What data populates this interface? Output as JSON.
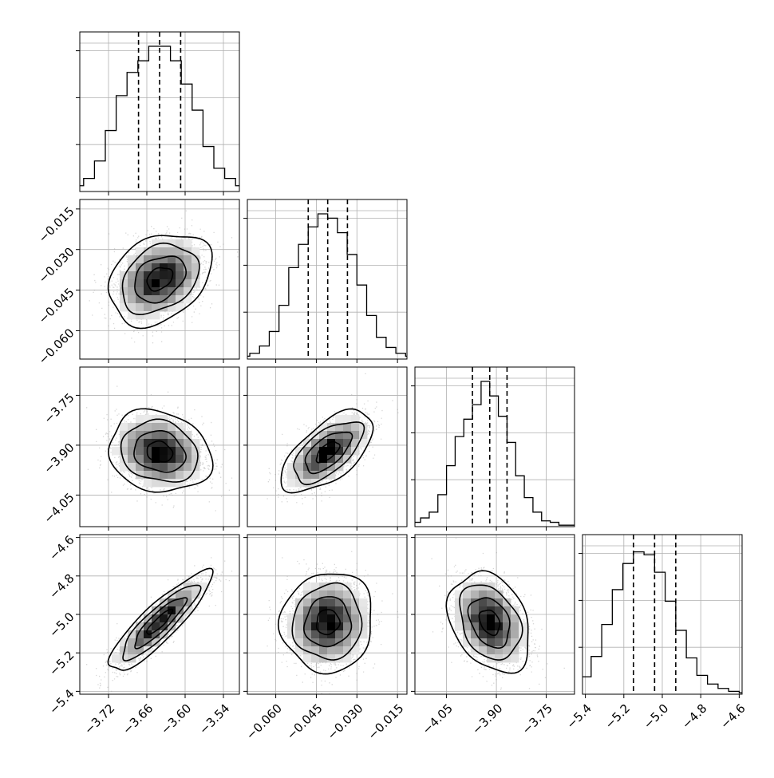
{
  "chart_data": {
    "type": "corner",
    "grid": true,
    "quantile_line_style": "dashed",
    "parameters": [
      {
        "index": 0,
        "range": [
          -3.765,
          -3.515
        ],
        "ticks": [
          -3.72,
          -3.66,
          -3.6,
          -3.54
        ],
        "tick_labels": [
          "−3.72",
          "−3.66",
          "−3.60",
          "−3.54"
        ],
        "mean": -3.64,
        "std": 0.034,
        "quantiles": [
          -3.673,
          -3.64,
          -3.607
        ],
        "hist": [
          1,
          2,
          4,
          9,
          21,
          42,
          66,
          82,
          90,
          100,
          100,
          90,
          74,
          56,
          31,
          16,
          9,
          4,
          2,
          1
        ],
        "hist_max": 100
      },
      {
        "index": 1,
        "range": [
          -0.0705,
          -0.0115
        ],
        "ticks": [
          -0.06,
          -0.045,
          -0.03,
          -0.015
        ],
        "tick_labels": [
          "−0.060",
          "−0.045",
          "−0.030",
          "−0.015"
        ],
        "mean": -0.0408,
        "std": 0.0072,
        "quantiles": [
          -0.048,
          -0.0408,
          -0.0335
        ],
        "hist": [
          1,
          2,
          4,
          9,
          19,
          37,
          63,
          79,
          91,
          100,
          97,
          87,
          72,
          51,
          30,
          15,
          8,
          4,
          2,
          1
        ],
        "hist_max": 100
      },
      {
        "index": 2,
        "range": [
          -4.145,
          -3.665
        ],
        "ticks": [
          -4.05,
          -3.9,
          -3.75
        ],
        "tick_labels": [
          "−4.05",
          "−3.90",
          "−3.75"
        ],
        "mean": -3.92,
        "std": 0.052,
        "quantiles": [
          -3.972,
          -3.92,
          -3.868
        ],
        "hist": [
          1,
          3,
          6,
          10,
          22,
          42,
          62,
          74,
          84,
          100,
          90,
          76,
          58,
          35,
          20,
          10,
          4,
          3,
          1,
          1
        ],
        "hist_max": 100
      },
      {
        "index": 3,
        "range": [
          -5.415,
          -4.585
        ],
        "ticks": [
          -5.4,
          -5.2,
          -5.0,
          -4.8,
          -4.6
        ],
        "tick_labels": [
          "−5.4",
          "−5.2",
          "−5.0",
          "−4.8",
          "−4.6"
        ],
        "mean": -5.04,
        "std": 0.11,
        "quantiles": [
          -5.15,
          -5.04,
          -4.93
        ],
        "hist": [
          1,
          2,
          6,
          12,
          26,
          48,
          72,
          90,
          98,
          96,
          84,
          64,
          44,
          25,
          13,
          7,
          4,
          2,
          1,
          1
        ],
        "hist_max": 100
      }
    ],
    "correlations": {
      "1-0": 0.3,
      "2-0": -0.15,
      "2-1": 0.62,
      "3-0": 0.88,
      "3-1": 0.05,
      "3-2": -0.3
    },
    "contour_levels_sigma": [
      0.5,
      1.0,
      1.5,
      2.0
    ]
  }
}
